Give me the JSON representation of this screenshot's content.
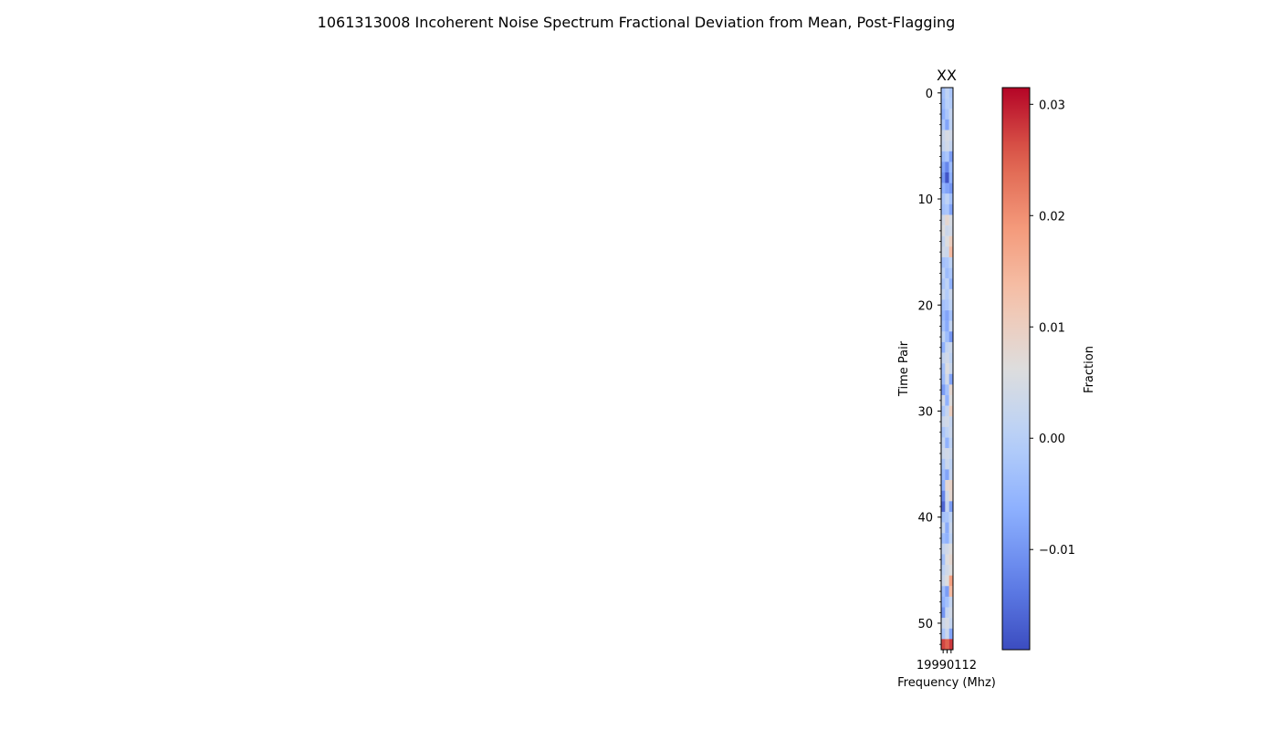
{
  "figure": {
    "suptitle": "1061313008 Incoherent Noise Spectrum Fractional Deviation from Mean, Post-Flagging"
  },
  "chart_data": {
    "type": "heatmap",
    "title": "XX",
    "xlabel": "Frequency (Mhz)",
    "ylabel": "Time Pair",
    "colorbar_label": "Fraction",
    "colormap": "coolwarm",
    "x_tick_labels_text": "19990112",
    "y_ticks": [
      0,
      10,
      20,
      30,
      40,
      50
    ],
    "y_tick_labels": [
      "0",
      "10",
      "20",
      "30",
      "40",
      "50"
    ],
    "n_rows": 53,
    "n_cols": 3,
    "vmin": -0.019,
    "vmax": 0.0315,
    "colorbar_ticks": [
      0.03,
      0.02,
      0.01,
      0.0,
      -0.01
    ],
    "colorbar_tick_labels": [
      "0.03",
      "0.02",
      "0.01",
      "0.00",
      "−0.01"
    ],
    "values": [
      [
        -0.003,
        0.001,
        -0.002
      ],
      [
        -0.004,
        0.0,
        -0.001
      ],
      [
        -0.006,
        -0.002,
        0.002
      ],
      [
        -0.002,
        -0.008,
        0.001
      ],
      [
        0.003,
        0.005,
        0.004
      ],
      [
        0.002,
        0.004,
        0.002
      ],
      [
        -0.004,
        -0.002,
        -0.009
      ],
      [
        -0.008,
        -0.012,
        -0.004
      ],
      [
        -0.01,
        -0.018,
        -0.006
      ],
      [
        -0.006,
        -0.008,
        -0.01
      ],
      [
        -0.002,
        0.001,
        -0.003
      ],
      [
        -0.003,
        -0.002,
        -0.008
      ],
      [
        0.004,
        0.008,
        0.005
      ],
      [
        0.006,
        0.003,
        0.004
      ],
      [
        0.002,
        0.006,
        0.01
      ],
      [
        0.004,
        0.003,
        0.014
      ],
      [
        -0.003,
        -0.002,
        0.001
      ],
      [
        0.001,
        -0.004,
        -0.002
      ],
      [
        -0.002,
        0.001,
        -0.006
      ],
      [
        0.002,
        -0.001,
        0.003
      ],
      [
        -0.003,
        -0.002,
        0.001
      ],
      [
        -0.005,
        -0.008,
        -0.003
      ],
      [
        -0.003,
        -0.007,
        0.002
      ],
      [
        0.001,
        -0.004,
        -0.01
      ],
      [
        -0.006,
        0.002,
        0.003
      ],
      [
        0.002,
        0.004,
        0.001
      ],
      [
        -0.003,
        0.006,
        0.003
      ],
      [
        -0.004,
        0.004,
        -0.008
      ],
      [
        -0.009,
        -0.003,
        0.008
      ],
      [
        0.004,
        -0.006,
        0.006
      ],
      [
        -0.002,
        0.002,
        0.01
      ],
      [
        0.003,
        0.004,
        0.002
      ],
      [
        -0.002,
        0.001,
        0.003
      ],
      [
        0.002,
        -0.006,
        0.001
      ],
      [
        0.003,
        0.004,
        0.003
      ],
      [
        -0.002,
        0.003,
        0.001
      ],
      [
        -0.004,
        -0.008,
        0.002
      ],
      [
        -0.006,
        0.008,
        0.009
      ],
      [
        -0.012,
        0.004,
        0.008
      ],
      [
        -0.016,
        0.002,
        -0.009
      ],
      [
        -0.003,
        -0.002,
        0.001
      ],
      [
        0.002,
        -0.007,
        0.003
      ],
      [
        -0.004,
        -0.006,
        0.001
      ],
      [
        0.002,
        0.004,
        0.006
      ],
      [
        -0.003,
        0.006,
        0.008
      ],
      [
        0.001,
        0.004,
        0.006
      ],
      [
        0.003,
        0.006,
        0.018
      ],
      [
        -0.004,
        -0.009,
        0.014
      ],
      [
        -0.006,
        -0.003,
        0.002
      ],
      [
        -0.01,
        0.002,
        0.004
      ],
      [
        0.003,
        0.005,
        0.002
      ],
      [
        -0.002,
        0.003,
        -0.008
      ],
      [
        0.027,
        0.025,
        0.028
      ]
    ]
  }
}
